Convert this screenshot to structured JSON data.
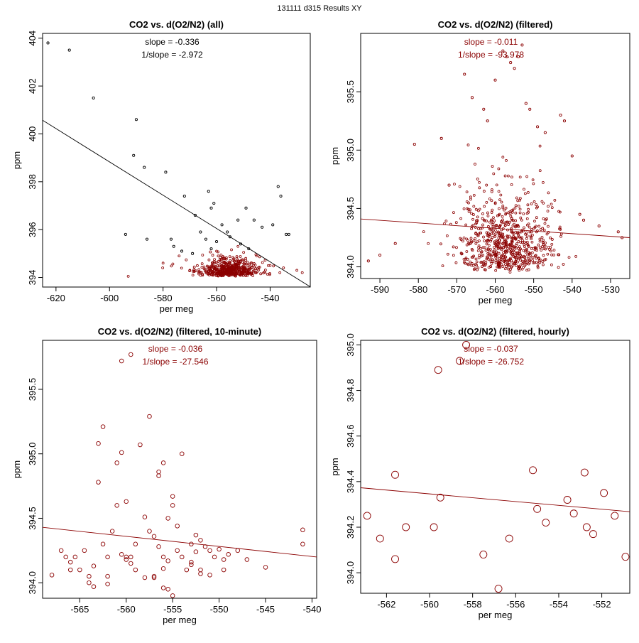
{
  "page_title": "131111   d315   Results XY",
  "chart_data": [
    {
      "type": "scatter",
      "title": "CO2 vs. d(O2/N2) (all)",
      "xlabel": "per meg",
      "ylabel": "ppm",
      "xlim": [
        -625,
        -525
      ],
      "ylim": [
        393.6,
        404.2
      ],
      "xticks": [
        -620,
        -600,
        -580,
        -560,
        -540
      ],
      "yticks": [
        394,
        396,
        398,
        400,
        402,
        404
      ],
      "annotations": [
        "slope = -0.336",
        "1/slope = -2.972"
      ],
      "annotation_color": "#000000",
      "line": {
        "x": [
          -625,
          -525
        ],
        "y": [
          400.57,
          393.61
        ],
        "color": "#000000"
      },
      "series": [
        {
          "name": "all",
          "color": "#000000",
          "marker_r": 1.6,
          "points": [
            [
              -623,
              403.8
            ],
            [
              -615,
              403.5
            ],
            [
              -606,
              401.5
            ],
            [
              -590,
              400.6
            ],
            [
              -591,
              399.1
            ],
            [
              -587,
              398.6
            ],
            [
              -579,
              398.4
            ],
            [
              -572,
              397.4
            ],
            [
              -563,
              397.6
            ],
            [
              -537,
              397.8
            ],
            [
              -536,
              397.4
            ],
            [
              -594,
              395.8
            ],
            [
              -586,
              395.6
            ],
            [
              -577,
              395.6
            ],
            [
              -568,
              396.6
            ],
            [
              -562,
              396.9
            ],
            [
              -561,
              397.1
            ],
            [
              -558,
              396.2
            ],
            [
              -556,
              395.9
            ],
            [
              -552,
              396.4
            ],
            [
              -549,
              396.9
            ],
            [
              -546,
              396.4
            ],
            [
              -543,
              396.1
            ],
            [
              -539,
              396.2
            ],
            [
              -534,
              395.8
            ],
            [
              -533,
              395.8
            ],
            [
              -566,
              395.9
            ],
            [
              -564,
              395.6
            ],
            [
              -560,
              395.5
            ],
            [
              -555,
              395.7
            ],
            [
              -551,
              395.4
            ],
            [
              -548,
              395.2
            ],
            [
              -573,
              395.1
            ],
            [
              -569,
              395.0
            ],
            [
              -576,
              395.3
            ],
            [
              -562,
              395.2
            ]
          ]
        },
        {
          "name": "filtered",
          "color": "#8b0000",
          "marker_r": 1.4,
          "points": []
        }
      ],
      "filtered_cluster": {
        "x_center": -556,
        "x_sd": 6,
        "y_base": 394.05,
        "y_spread": 0.6,
        "count": 500
      },
      "extra_filtered_points": [
        [
          -593,
          394.05
        ],
        [
          -570,
          394.3
        ],
        [
          -580,
          394.6
        ],
        [
          -574,
          394.9
        ],
        [
          -545,
          394.9
        ],
        [
          -560,
          395.1
        ],
        [
          -552,
          395.3
        ],
        [
          -540,
          394.5
        ],
        [
          -535,
          394.4
        ],
        [
          -530,
          394.3
        ],
        [
          -528,
          394.2
        ]
      ]
    },
    {
      "type": "scatter",
      "title": "CO2 vs. d(O2/N2) (filtered)",
      "xlabel": "per meg",
      "ylabel": "ppm",
      "xlim": [
        -595,
        -525
      ],
      "ylim": [
        393.9,
        396.0
      ],
      "xticks": [
        -590,
        -580,
        -570,
        -560,
        -550,
        -540,
        -530
      ],
      "yticks": [
        394.0,
        394.5,
        395.0,
        395.5
      ],
      "annotations": [
        "slope = -0.011",
        "1/slope = -93.978"
      ],
      "annotation_color": "#8b0000",
      "line": {
        "x": [
          -595,
          -525
        ],
        "y": [
          394.41,
          394.25
        ],
        "color": "#8b0000"
      },
      "series": [
        {
          "name": "filtered",
          "color": "#8b0000",
          "marker_r": 1.6,
          "points": [
            [
              -593,
              394.05
            ],
            [
              -581,
              395.05
            ],
            [
              -574,
              395.1
            ],
            [
              -572,
              394.7
            ],
            [
              -568,
              395.65
            ],
            [
              -566,
              395.45
            ],
            [
              -563,
              395.35
            ],
            [
              -562,
              395.25
            ],
            [
              -560,
              395.6
            ],
            [
              -558,
              395.85
            ],
            [
              -557,
              395.8
            ],
            [
              -556,
              395.75
            ],
            [
              -555,
              395.7
            ],
            [
              -554,
              395.8
            ],
            [
              -553,
              395.9
            ],
            [
              -552,
              395.4
            ],
            [
              -551,
              395.35
            ],
            [
              -549,
              395.2
            ],
            [
              -547,
              395.15
            ],
            [
              -543,
              395.3
            ],
            [
              -542,
              395.25
            ],
            [
              -540,
              394.95
            ],
            [
              -538,
              394.45
            ],
            [
              -537,
              394.4
            ],
            [
              -533,
              394.35
            ],
            [
              -528,
              394.3
            ],
            [
              -527,
              394.25
            ],
            [
              -586,
              394.2
            ],
            [
              -590,
              394.1
            ]
          ]
        }
      ],
      "filtered_cluster": {
        "x_center": -557,
        "x_sd": 6.5,
        "y_base": 393.95,
        "y_spread": 0.55,
        "count": 700
      }
    },
    {
      "type": "scatter",
      "title": "CO2 vs. d(O2/N2) (filtered, 10-minute)",
      "xlabel": "per meg",
      "ylabel": "ppm",
      "xlim": [
        -569,
        -539.5
      ],
      "ylim": [
        393.88,
        395.88
      ],
      "xticks": [
        -565,
        -560,
        -555,
        -550,
        -545,
        -540
      ],
      "yticks": [
        394.0,
        394.5,
        395.0,
        395.5
      ],
      "annotations": [
        "slope = -0.036",
        "1/slope = -27.546"
      ],
      "annotation_color": "#8b0000",
      "line": {
        "x": [
          -569,
          -539.5
        ],
        "y": [
          394.43,
          394.2
        ],
        "color": "#8b0000"
      },
      "series": [
        {
          "name": "10-minute",
          "color": "#8b0000",
          "marker_r": 2.8,
          "points": [
            [
              -568,
              394.06
            ],
            [
              -567,
              394.25
            ],
            [
              -566.5,
              394.2
            ],
            [
              -566,
              394.16
            ],
            [
              -565.5,
              394.2
            ],
            [
              -565,
              394.1
            ],
            [
              -564.5,
              394.25
            ],
            [
              -564,
              394.05
            ],
            [
              -563.5,
              394.13
            ],
            [
              -563,
              394.78
            ],
            [
              -563,
              395.08
            ],
            [
              -562.5,
              395.21
            ],
            [
              -562.5,
              394.3
            ],
            [
              -562,
              394.2
            ],
            [
              -562,
              394.05
            ],
            [
              -561.5,
              394.4
            ],
            [
              -561,
              394.6
            ],
            [
              -561,
              394.93
            ],
            [
              -560.5,
              395.01
            ],
            [
              -560.5,
              394.22
            ],
            [
              -560.5,
              395.72
            ],
            [
              -560,
              394.63
            ],
            [
              -560,
              394.18
            ],
            [
              -559.5,
              394.2
            ],
            [
              -559.5,
              394.15
            ],
            [
              -559.5,
              395.77
            ],
            [
              -559,
              394.3
            ],
            [
              -559,
              394.1
            ],
            [
              -558.5,
              395.07
            ],
            [
              -558,
              394.51
            ],
            [
              -557.5,
              394.4
            ],
            [
              -557.5,
              395.29
            ],
            [
              -557,
              394.36
            ],
            [
              -557,
              394.05
            ],
            [
              -556.5,
              394.86
            ],
            [
              -556.5,
              394.83
            ],
            [
              -556.5,
              394.28
            ],
            [
              -556,
              394.93
            ],
            [
              -556,
              394.2
            ],
            [
              -556,
              394.11
            ],
            [
              -555.5,
              394.5
            ],
            [
              -555.5,
              394.17
            ],
            [
              -555,
              394.6
            ],
            [
              -554.5,
              394.44
            ],
            [
              -554.5,
              394.25
            ],
            [
              -554,
              394.2
            ],
            [
              -553.5,
              394.1
            ],
            [
              -553,
              394.3
            ],
            [
              -553,
              394.16
            ],
            [
              -552.5,
              394.37
            ],
            [
              -552.5,
              394.24
            ],
            [
              -552,
              394.33
            ],
            [
              -552,
              394.1
            ],
            [
              -551.5,
              394.28
            ],
            [
              -551,
              394.25
            ],
            [
              -551,
              394.06
            ],
            [
              -550.5,
              394.2
            ],
            [
              -550,
              394.26
            ],
            [
              -549.5,
              394.18
            ],
            [
              -549,
              394.22
            ],
            [
              -548,
              394.25
            ],
            [
              -547,
              394.18
            ],
            [
              -545,
              394.12
            ],
            [
              -541,
              394.41
            ],
            [
              -541,
              394.3
            ],
            [
              -554,
              395.0
            ],
            [
              -555,
              394.67
            ],
            [
              -566,
              394.1
            ],
            [
              -564,
              394.0
            ],
            [
              -563.5,
              393.97
            ],
            [
              -560,
              394.2
            ],
            [
              -558,
              394.04
            ],
            [
              -557,
              394.04
            ],
            [
              -556,
              393.96
            ],
            [
              -555.5,
              393.95
            ],
            [
              -555,
              393.9
            ],
            [
              -562,
              393.99
            ],
            [
              -553,
              394.14
            ],
            [
              -552,
              394.07
            ],
            [
              -549.5,
              394.1
            ]
          ]
        }
      ]
    },
    {
      "type": "scatter",
      "title": "CO2 vs. d(O2/N2) (filtered, hourly)",
      "xlabel": "per meg",
      "ylabel": "ppm",
      "xlim": [
        -563.2,
        -550.7
      ],
      "ylim": [
        393.91,
        395.02
      ],
      "xticks": [
        -562,
        -560,
        -558,
        -556,
        -554,
        -552
      ],
      "yticks": [
        394.0,
        394.2,
        394.4,
        394.6,
        394.8,
        395.0
      ],
      "annotations": [
        "slope = -0.037",
        "1/slope = -26.752"
      ],
      "annotation_color": "#8b0000",
      "line": {
        "x": [
          -563.2,
          -550.7
        ],
        "y": [
          394.373,
          394.268
        ],
        "color": "#8b0000"
      },
      "series": [
        {
          "name": "hourly",
          "color": "#8b0000",
          "marker_r": 5,
          "points": [
            [
              -562.9,
              394.25
            ],
            [
              -562.3,
              394.15
            ],
            [
              -561.6,
              394.43
            ],
            [
              -561.6,
              394.06
            ],
            [
              -561.1,
              394.2
            ],
            [
              -559.8,
              394.2
            ],
            [
              -559.6,
              394.89
            ],
            [
              -559.5,
              394.33
            ],
            [
              -558.6,
              394.93
            ],
            [
              -558.3,
              395.0
            ],
            [
              -557.5,
              394.08
            ],
            [
              -556.8,
              393.93
            ],
            [
              -556.3,
              394.15
            ],
            [
              -555.2,
              394.45
            ],
            [
              -555.0,
              394.28
            ],
            [
              -554.6,
              394.22
            ],
            [
              -553.6,
              394.32
            ],
            [
              -553.3,
              394.26
            ],
            [
              -552.8,
              394.44
            ],
            [
              -552.7,
              394.2
            ],
            [
              -552.4,
              394.17
            ],
            [
              -551.9,
              394.35
            ],
            [
              -551.4,
              394.25
            ],
            [
              -550.9,
              394.07
            ]
          ]
        }
      ]
    }
  ]
}
